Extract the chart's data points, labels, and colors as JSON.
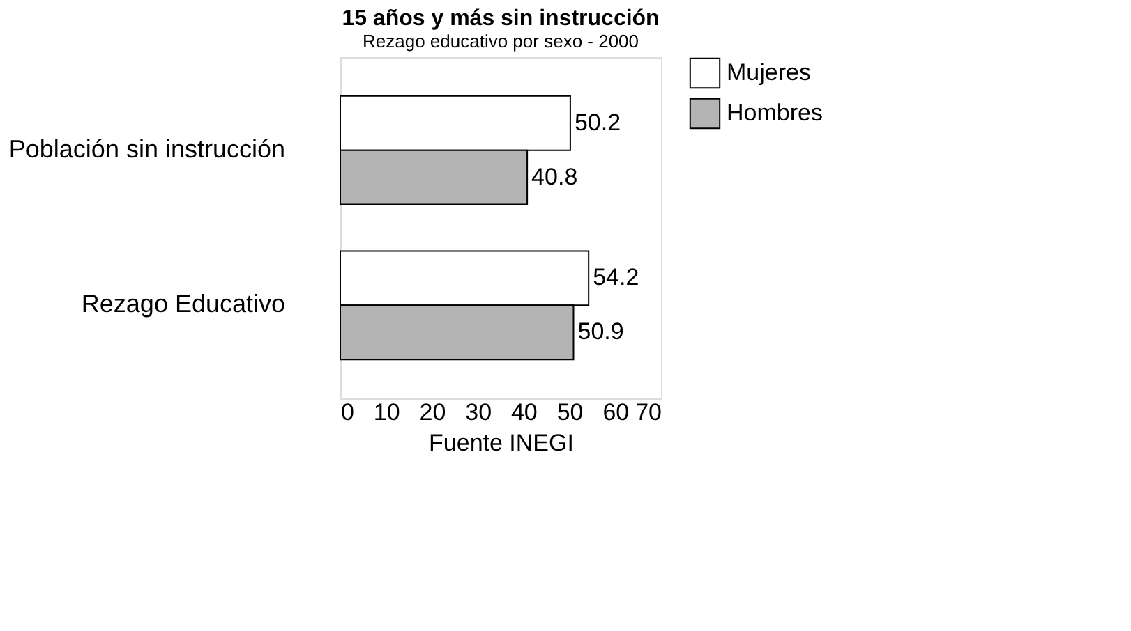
{
  "chart_data": {
    "type": "bar",
    "orientation": "horizontal",
    "title": "15 años y más sin instrucción",
    "subtitle": "Rezago educativo por sexo - 2000",
    "xlabel": "Fuente INEGI",
    "categories": [
      "Población sin instrucción",
      "Rezago Educativo"
    ],
    "series": [
      {
        "name": "Mujeres",
        "color": "#ffffff",
        "values": [
          50.2,
          54.2
        ]
      },
      {
        "name": "Hombres",
        "color": "#b4b4b4",
        "values": [
          40.8,
          50.9
        ]
      }
    ],
    "xlim": [
      0,
      70
    ],
    "xticks": [
      0,
      10,
      20,
      30,
      40,
      50,
      60,
      70
    ],
    "grid": false,
    "legend": "right",
    "data_labels": true
  }
}
